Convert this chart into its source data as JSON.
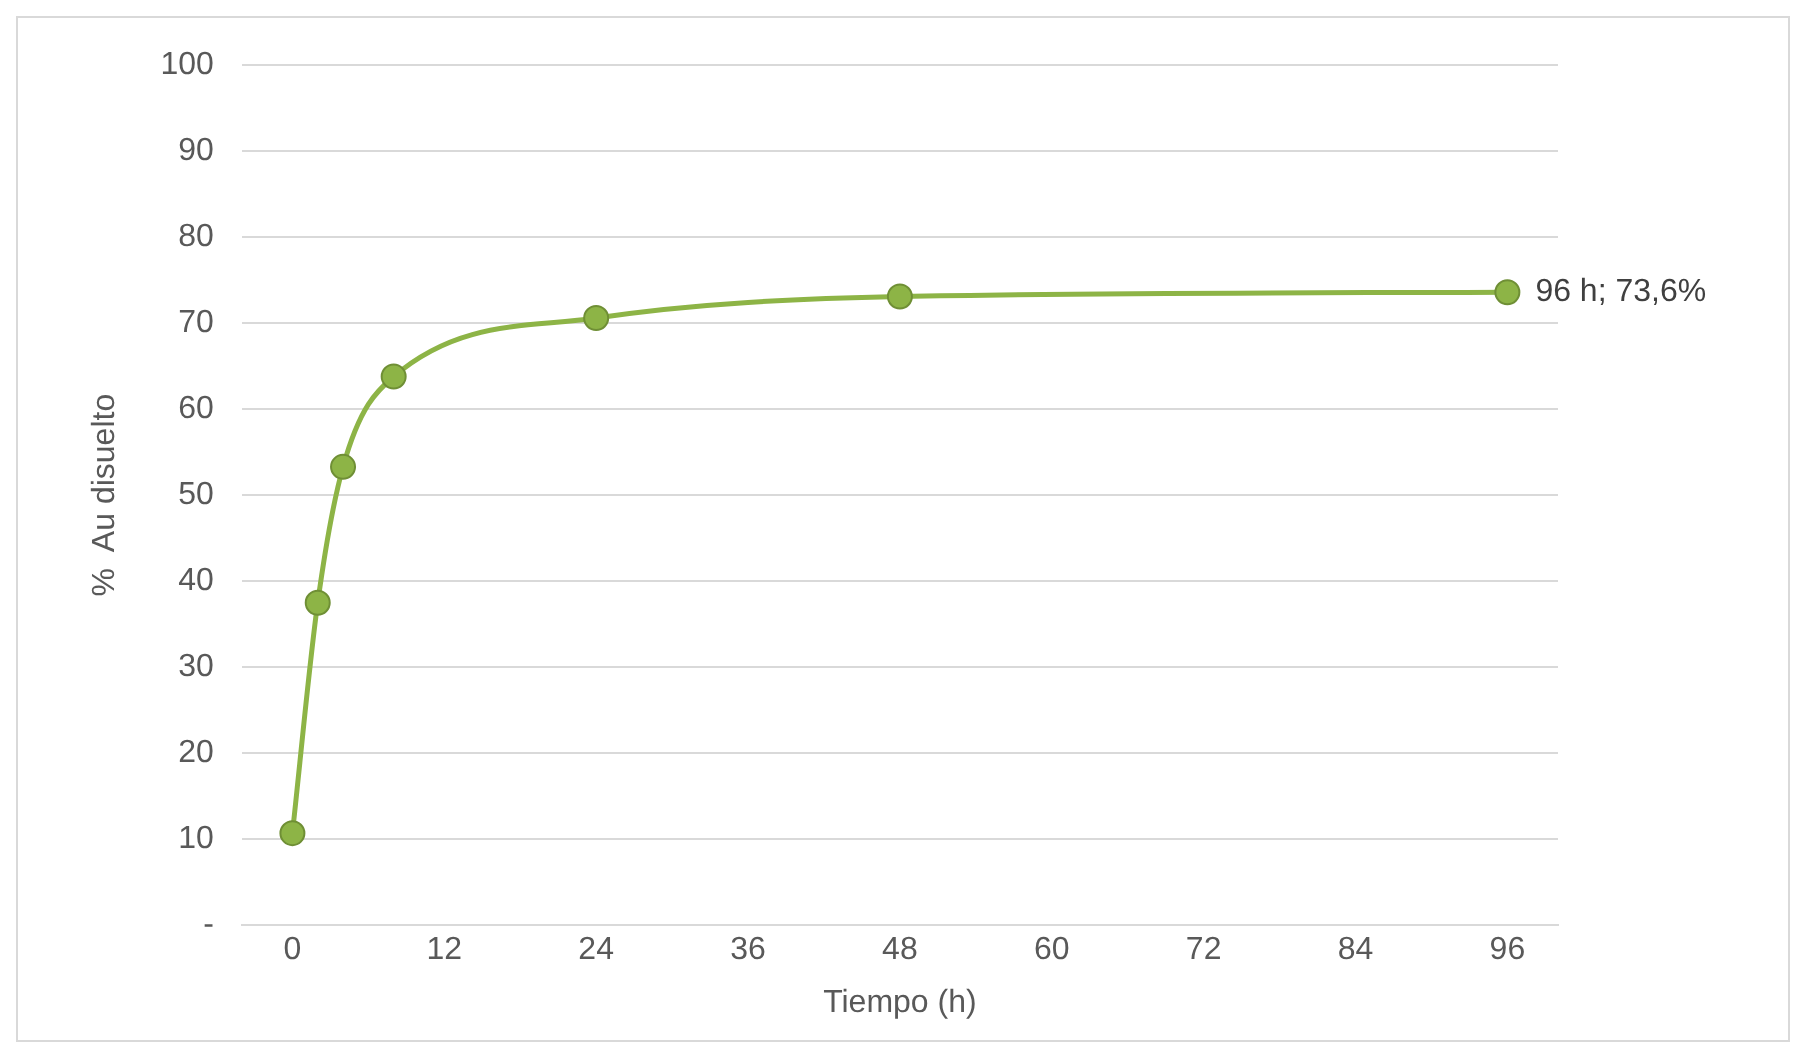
{
  "chart_data": {
    "type": "line",
    "xlabel": "Tiempo (h)",
    "ylabel": "%  Au disuelto",
    "x": [
      0,
      2,
      4,
      8,
      24,
      48,
      96
    ],
    "series": [
      {
        "color": "#8db446",
        "values": [
          10.7,
          37.5,
          53.3,
          63.8,
          70.6,
          73.1,
          73.6
        ]
      }
    ],
    "xlim": [
      -4,
      100
    ],
    "xticks": [
      0,
      12,
      24,
      36,
      48,
      60,
      72,
      84,
      96
    ],
    "ylim": [
      0,
      100
    ],
    "yticks": [
      {
        "value": 0,
        "label": "-"
      },
      10,
      20,
      30,
      40,
      50,
      60,
      70,
      80,
      90,
      100
    ],
    "grid": "y",
    "legend": false,
    "marker": "circle",
    "line_style": "solid",
    "annotations": [
      {
        "text": "96 h; 73,6%",
        "x": 96,
        "y": 73.6
      }
    ]
  }
}
